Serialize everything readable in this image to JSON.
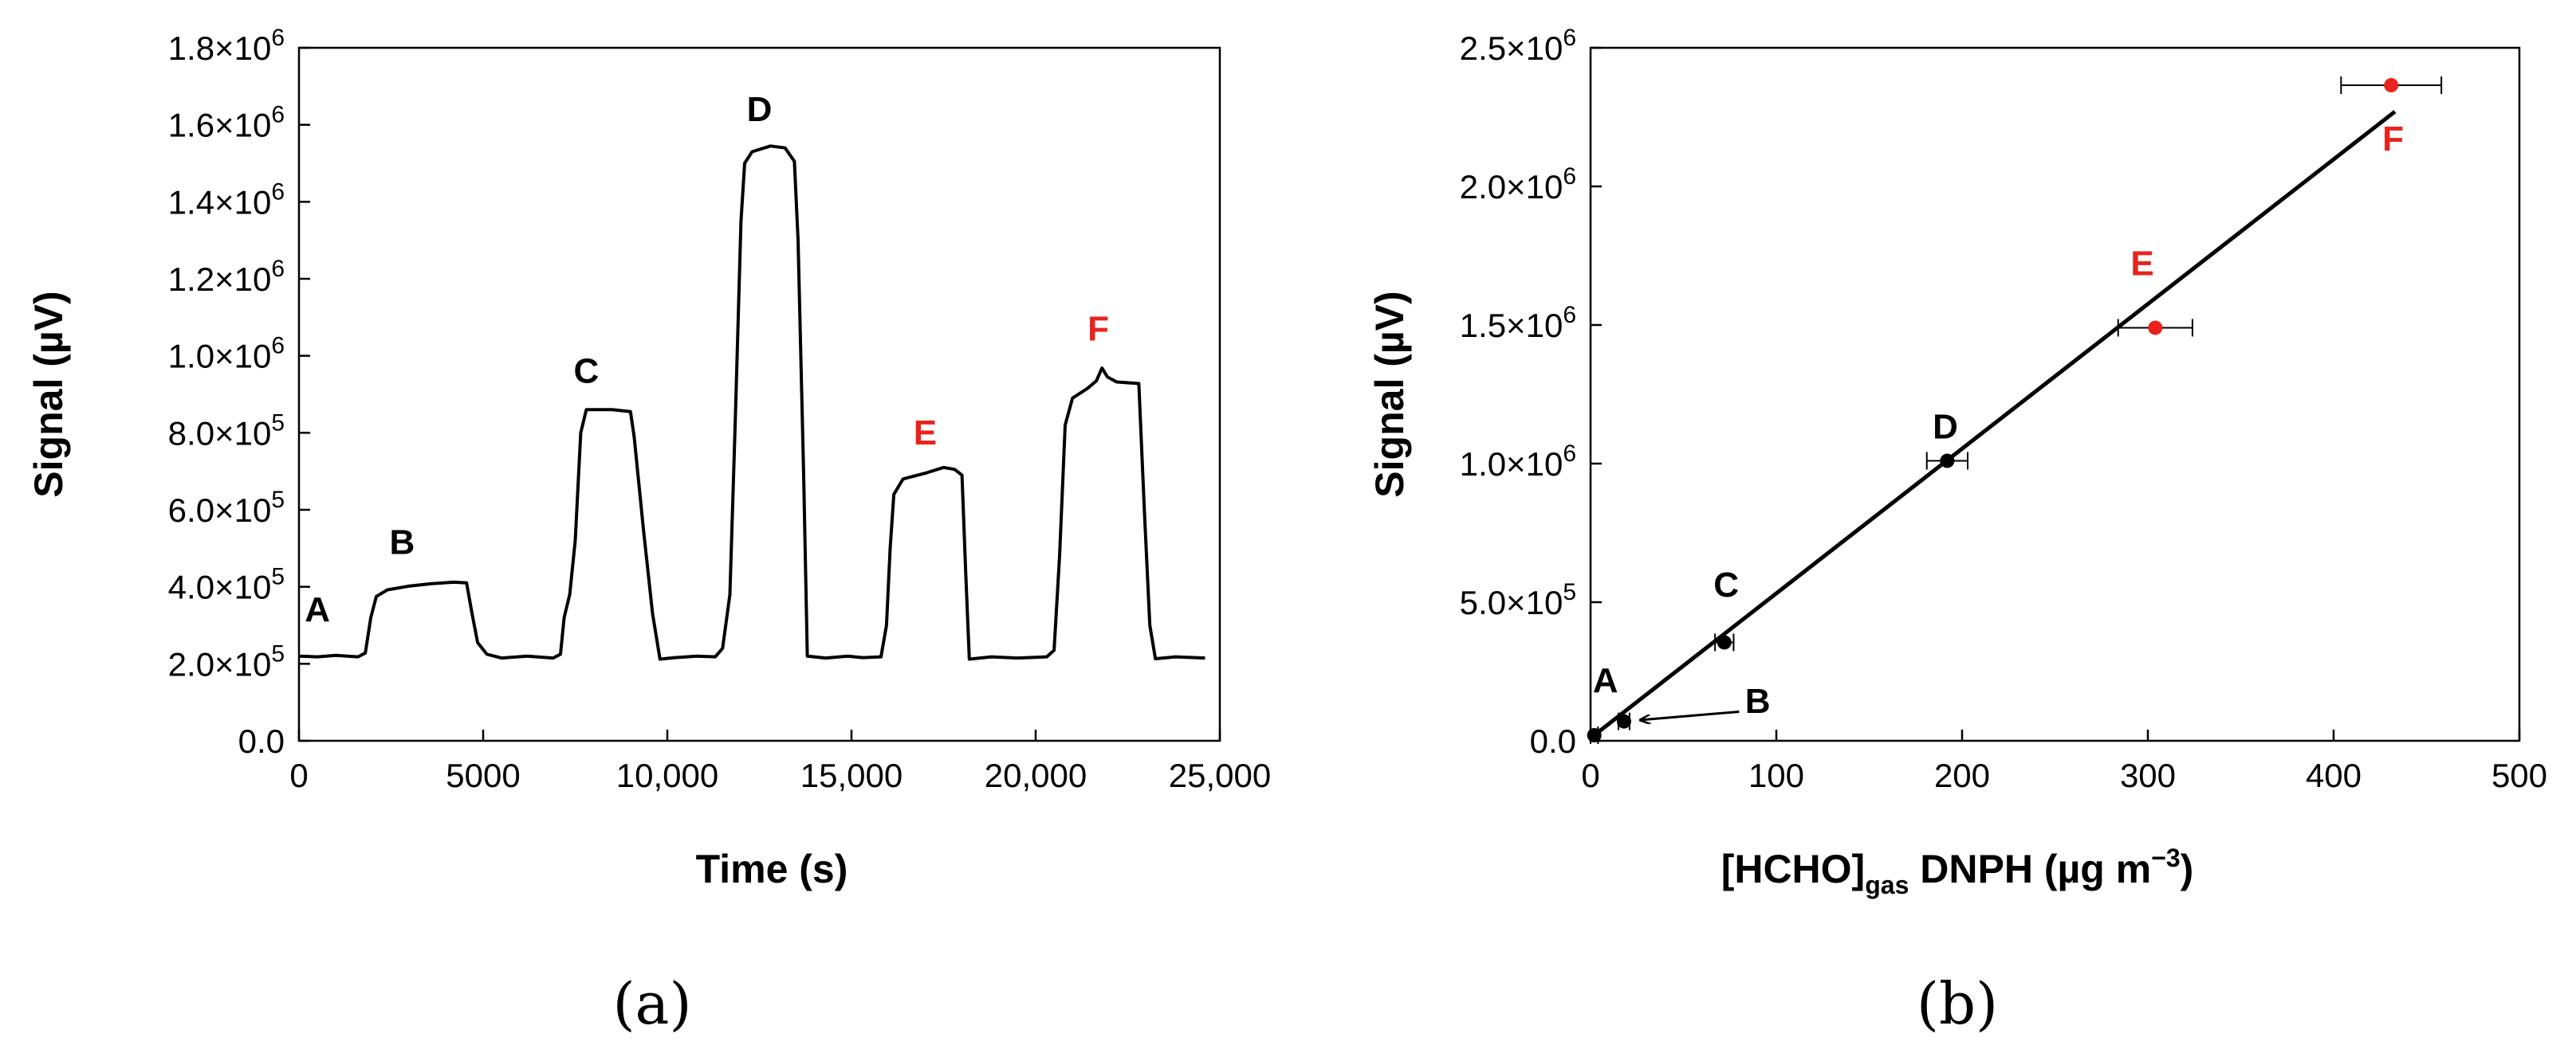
{
  "colors": {
    "axis": "#000000",
    "trace": "#000000",
    "highlight": "#e8231c"
  },
  "chart_data": [
    {
      "type": "line",
      "panel_label": "(a)",
      "xlabel": "Time (s)",
      "ylabel": "Signal (µV)",
      "xlim": [
        0,
        25000
      ],
      "ylim": [
        0,
        1800000
      ],
      "xticks": [
        {
          "value": 0,
          "label": "0"
        },
        {
          "value": 5000,
          "label": "5000"
        },
        {
          "value": 10000,
          "label": "10,000"
        },
        {
          "value": 15000,
          "label": "15,000"
        },
        {
          "value": 20000,
          "label": "20,000"
        },
        {
          "value": 25000,
          "label": "25,000"
        }
      ],
      "yticks": [
        {
          "value": 0,
          "mantissa": "0.0",
          "exp": ""
        },
        {
          "value": 200000,
          "mantissa": "2.0×10",
          "exp": "5"
        },
        {
          "value": 400000,
          "mantissa": "4.0×10",
          "exp": "5"
        },
        {
          "value": 600000,
          "mantissa": "6.0×10",
          "exp": "5"
        },
        {
          "value": 800000,
          "mantissa": "8.0×10",
          "exp": "5"
        },
        {
          "value": 1000000,
          "mantissa": "1.0×10",
          "exp": "6"
        },
        {
          "value": 1200000,
          "mantissa": "1.2×10",
          "exp": "6"
        },
        {
          "value": 1400000,
          "mantissa": "1.4×10",
          "exp": "6"
        },
        {
          "value": 1600000,
          "mantissa": "1.6×10",
          "exp": "6"
        },
        {
          "value": 1800000,
          "mantissa": "1.8×10",
          "exp": "6"
        }
      ],
      "series": [
        {
          "name": "signal trace",
          "points": [
            [
              0,
              220000
            ],
            [
              500,
              218000
            ],
            [
              1000,
              222000
            ],
            [
              1600,
              218000
            ],
            [
              1800,
              228000
            ],
            [
              1950,
              320000
            ],
            [
              2100,
              375000
            ],
            [
              2400,
              392000
            ],
            [
              3000,
              402000
            ],
            [
              3600,
              408000
            ],
            [
              4200,
              412000
            ],
            [
              4550,
              410000
            ],
            [
              4700,
              330000
            ],
            [
              4850,
              255000
            ],
            [
              5100,
              225000
            ],
            [
              5500,
              215000
            ],
            [
              6200,
              220000
            ],
            [
              6900,
              215000
            ],
            [
              7100,
              225000
            ],
            [
              7200,
              320000
            ],
            [
              7350,
              380000
            ],
            [
              7500,
              520000
            ],
            [
              7650,
              800000
            ],
            [
              7800,
              860000
            ],
            [
              8500,
              860000
            ],
            [
              9000,
              855000
            ],
            [
              9100,
              790000
            ],
            [
              9350,
              550000
            ],
            [
              9600,
              330000
            ],
            [
              9800,
              212000
            ],
            [
              10200,
              216000
            ],
            [
              10800,
              220000
            ],
            [
              11300,
              218000
            ],
            [
              11500,
              240000
            ],
            [
              11700,
              380000
            ],
            [
              11850,
              850000
            ],
            [
              12000,
              1350000
            ],
            [
              12100,
              1500000
            ],
            [
              12300,
              1530000
            ],
            [
              12800,
              1545000
            ],
            [
              13200,
              1540000
            ],
            [
              13450,
              1505000
            ],
            [
              13550,
              1300000
            ],
            [
              13700,
              700000
            ],
            [
              13800,
              220000
            ],
            [
              14300,
              215000
            ],
            [
              14900,
              220000
            ],
            [
              15300,
              216000
            ],
            [
              15800,
              218000
            ],
            [
              15950,
              300000
            ],
            [
              16050,
              500000
            ],
            [
              16150,
              640000
            ],
            [
              16400,
              680000
            ],
            [
              17000,
              695000
            ],
            [
              17500,
              710000
            ],
            [
              17800,
              705000
            ],
            [
              18000,
              690000
            ],
            [
              18100,
              440000
            ],
            [
              18200,
              212000
            ],
            [
              18800,
              218000
            ],
            [
              19500,
              215000
            ],
            [
              20300,
              218000
            ],
            [
              20500,
              235000
            ],
            [
              20650,
              480000
            ],
            [
              20800,
              820000
            ],
            [
              21000,
              890000
            ],
            [
              21400,
              915000
            ],
            [
              21650,
              935000
            ],
            [
              21800,
              968000
            ],
            [
              21950,
              945000
            ],
            [
              22200,
              932000
            ],
            [
              22800,
              928000
            ],
            [
              22950,
              600000
            ],
            [
              23100,
              300000
            ],
            [
              23250,
              213000
            ],
            [
              23800,
              218000
            ],
            [
              24600,
              215000
            ]
          ]
        }
      ],
      "annotations": [
        {
          "text": "A",
          "x": 500,
          "y": 310000,
          "highlight": false
        },
        {
          "text": "B",
          "x": 2800,
          "y": 485000,
          "highlight": false
        },
        {
          "text": "C",
          "x": 7800,
          "y": 930000,
          "highlight": false
        },
        {
          "text": "D",
          "x": 12500,
          "y": 1610000,
          "highlight": false
        },
        {
          "text": "E",
          "x": 17000,
          "y": 770000,
          "highlight": true
        },
        {
          "text": "F",
          "x": 21700,
          "y": 1040000,
          "highlight": true
        }
      ]
    },
    {
      "type": "scatter",
      "panel_label": "(b)",
      "xlabel_main": "[HCHO]",
      "xlabel_sub": "gas",
      "xlabel_after": " DNPH (µg m",
      "xlabel_sup": "−3",
      "xlabel_close": ")",
      "ylabel": "Signal (µV)",
      "xlim": [
        0,
        500
      ],
      "ylim": [
        0,
        2500000
      ],
      "xticks": [
        {
          "value": 0,
          "label": "0"
        },
        {
          "value": 100,
          "label": "100"
        },
        {
          "value": 200,
          "label": "200"
        },
        {
          "value": 300,
          "label": "300"
        },
        {
          "value": 400,
          "label": "400"
        },
        {
          "value": 500,
          "label": "500"
        }
      ],
      "yticks": [
        {
          "value": 0,
          "mantissa": "0.0",
          "exp": ""
        },
        {
          "value": 500000,
          "mantissa": "5.0×10",
          "exp": "5"
        },
        {
          "value": 1000000,
          "mantissa": "1.0×10",
          "exp": "6"
        },
        {
          "value": 1500000,
          "mantissa": "1.5×10",
          "exp": "6"
        },
        {
          "value": 2000000,
          "mantissa": "2.0×10",
          "exp": "6"
        },
        {
          "value": 2500000,
          "mantissa": "2.5×10",
          "exp": "6"
        }
      ],
      "points": [
        {
          "label": "A",
          "x": 2,
          "y": 20000,
          "xerr": 2,
          "highlight": false
        },
        {
          "label": "B",
          "x": 18,
          "y": 70000,
          "xerr": 3,
          "highlight": false
        },
        {
          "label": "C",
          "x": 72,
          "y": 355000,
          "xerr": 5,
          "highlight": false
        },
        {
          "label": "D",
          "x": 192,
          "y": 1010000,
          "xerr": 11,
          "highlight": false
        },
        {
          "label": "E",
          "x": 304,
          "y": 1490000,
          "xerr": 20,
          "highlight": true
        },
        {
          "label": "F",
          "x": 431,
          "y": 2365000,
          "xerr": 27,
          "highlight": true
        }
      ],
      "fit_line": {
        "x": [
          1,
          433
        ],
        "y": [
          15000,
          2270000
        ]
      },
      "annotations": [
        {
          "text": "A",
          "x": 8,
          "y": 175000,
          "highlight": false
        },
        {
          "text": "B",
          "x": 90,
          "y": 100000,
          "highlight": false
        },
        {
          "text": "C",
          "x": 73,
          "y": 520000,
          "highlight": false
        },
        {
          "text": "D",
          "x": 191,
          "y": 1090000,
          "highlight": false
        },
        {
          "text": "E",
          "x": 297,
          "y": 1680000,
          "highlight": true
        },
        {
          "text": "F",
          "x": 432,
          "y": 2130000,
          "highlight": true
        }
      ],
      "arrow": {
        "from": [
          80,
          105000
        ],
        "to": [
          27,
          75000
        ]
      }
    }
  ]
}
